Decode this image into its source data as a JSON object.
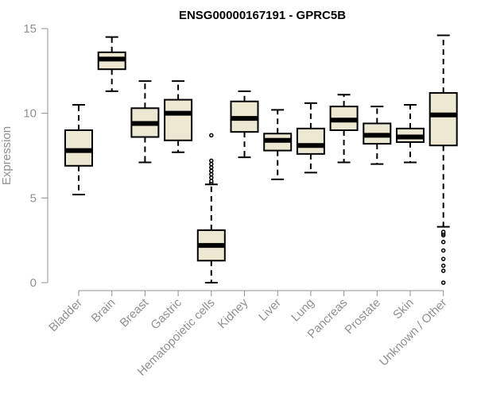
{
  "chart_data": {
    "type": "boxplot",
    "title": "ENSG00000167191 - GPRC5B",
    "xlabel": "",
    "ylabel": "Expression",
    "ylim": [
      0,
      15
    ],
    "yticks": [
      0,
      5,
      10,
      15
    ],
    "grid": false,
    "box_color": "#ede8d2",
    "categories": [
      "Bladder",
      "Brain",
      "Breast",
      "Gastric",
      "Hematopoietic cells",
      "Kidney",
      "Liver",
      "Lung",
      "Pancreas",
      "Prostate",
      "Skin",
      "Unknown / Other"
    ],
    "boxes": [
      {
        "label": "Bladder",
        "min": 5.2,
        "q1": 6.9,
        "median": 7.8,
        "q3": 9.0,
        "max": 10.5,
        "outliers": []
      },
      {
        "label": "Brain",
        "min": 11.3,
        "q1": 12.6,
        "median": 13.2,
        "q3": 13.6,
        "max": 14.5,
        "outliers": []
      },
      {
        "label": "Breast",
        "min": 7.1,
        "q1": 8.6,
        "median": 9.4,
        "q3": 10.3,
        "max": 11.9,
        "outliers": []
      },
      {
        "label": "Gastric",
        "min": 7.7,
        "q1": 8.4,
        "median": 10.0,
        "q3": 10.8,
        "max": 11.9,
        "outliers": []
      },
      {
        "label": "Hematopoietic cells",
        "min": 0.0,
        "q1": 1.3,
        "median": 2.2,
        "q3": 3.1,
        "max": 5.8,
        "outliers": [
          5.9,
          6.0,
          6.2,
          6.4,
          6.6,
          6.8,
          7.0,
          7.2,
          8.7
        ]
      },
      {
        "label": "Kidney",
        "min": 7.4,
        "q1": 8.9,
        "median": 9.7,
        "q3": 10.7,
        "max": 11.3,
        "outliers": []
      },
      {
        "label": "Liver",
        "min": 6.1,
        "q1": 7.8,
        "median": 8.4,
        "q3": 8.8,
        "max": 10.2,
        "outliers": []
      },
      {
        "label": "Lung",
        "min": 6.5,
        "q1": 7.6,
        "median": 8.1,
        "q3": 9.1,
        "max": 10.6,
        "outliers": []
      },
      {
        "label": "Pancreas",
        "min": 7.1,
        "q1": 9.0,
        "median": 9.6,
        "q3": 10.4,
        "max": 11.1,
        "outliers": []
      },
      {
        "label": "Prostate",
        "min": 7.0,
        "q1": 8.2,
        "median": 8.7,
        "q3": 9.4,
        "max": 10.4,
        "outliers": []
      },
      {
        "label": "Skin",
        "min": 7.1,
        "q1": 8.3,
        "median": 8.6,
        "q3": 9.1,
        "max": 10.5,
        "outliers": []
      },
      {
        "label": "Unknown / Other",
        "min": 3.3,
        "q1": 8.1,
        "median": 9.9,
        "q3": 11.2,
        "max": 14.6,
        "outliers": [
          0.0,
          0.7,
          1.0,
          1.4,
          1.9,
          2.4,
          2.8,
          2.9,
          3.0
        ]
      }
    ]
  }
}
